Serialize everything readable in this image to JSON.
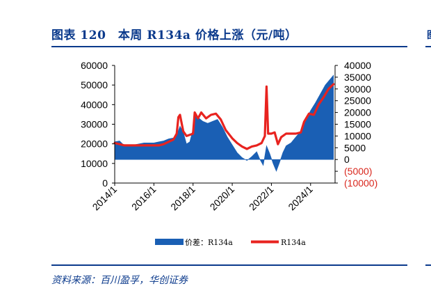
{
  "header": {
    "title": "图表 120　本周 R134a 价格上涨（元/吨）"
  },
  "footer": {
    "source": "资料来源：百川盈孚，华创证券"
  },
  "chart_data": {
    "type": "area",
    "title": "",
    "x_tick_labels": [
      "2014/1",
      "2016/1",
      "2018/1",
      "2020/1",
      "2022/1",
      "2024/1"
    ],
    "y_left": {
      "ticks": [
        "0",
        "10000",
        "20000",
        "30000",
        "40000",
        "50000",
        "60000"
      ],
      "ylim": [
        0,
        60000
      ]
    },
    "y_right": {
      "ticks": [
        "(10000)",
        "(5000)",
        "0",
        "5000",
        "10000",
        "15000",
        "20000",
        "25000",
        "30000",
        "35000",
        "40000"
      ],
      "ylim": [
        -10000,
        40000
      ]
    },
    "grid": false,
    "legend_position": "bottom",
    "series": [
      {
        "name": "价差：R134a",
        "type": "area",
        "axis": "left",
        "color": "#1a5fb4",
        "points": [
          [
            "2014-01",
            21000
          ],
          [
            "2014-04",
            21500
          ],
          [
            "2014-07",
            19000
          ],
          [
            "2014-10",
            18500
          ],
          [
            "2015-01",
            19500
          ],
          [
            "2015-04",
            20000
          ],
          [
            "2015-07",
            20500
          ],
          [
            "2015-10",
            20500
          ],
          [
            "2016-01",
            20500
          ],
          [
            "2016-04",
            21000
          ],
          [
            "2016-07",
            21500
          ],
          [
            "2016-10",
            22500
          ],
          [
            "2017-01",
            23000
          ],
          [
            "2017-03",
            24500
          ],
          [
            "2017-05",
            29000
          ],
          [
            "2017-07",
            26000
          ],
          [
            "2017-09",
            20000
          ],
          [
            "2017-11",
            21000
          ],
          [
            "2018-01",
            27500
          ],
          [
            "2018-02",
            35500
          ],
          [
            "2018-04",
            33500
          ],
          [
            "2018-07",
            31500
          ],
          [
            "2018-10",
            30500
          ],
          [
            "2019-01",
            31500
          ],
          [
            "2019-04",
            32500
          ],
          [
            "2019-07",
            28500
          ],
          [
            "2019-10",
            23500
          ],
          [
            "2020-01",
            19500
          ],
          [
            "2020-04",
            15500
          ],
          [
            "2020-07",
            13000
          ],
          [
            "2020-10",
            11500
          ],
          [
            "2021-01",
            13500
          ],
          [
            "2021-04",
            16000
          ],
          [
            "2021-06",
            12000
          ],
          [
            "2021-08",
            9000
          ],
          [
            "2021-10",
            19000
          ],
          [
            "2021-12",
            15000
          ],
          [
            "2022-02",
            10000
          ],
          [
            "2022-04",
            6000
          ],
          [
            "2022-06",
            10500
          ],
          [
            "2022-08",
            15500
          ],
          [
            "2022-10",
            19000
          ],
          [
            "2023-01",
            20500
          ],
          [
            "2023-04",
            23500
          ],
          [
            "2023-07",
            26500
          ],
          [
            "2023-10",
            32000
          ],
          [
            "2024-01",
            37000
          ],
          [
            "2024-04",
            41000
          ],
          [
            "2024-07",
            45500
          ],
          [
            "2024-10",
            50000
          ],
          [
            "2025-01",
            53000
          ],
          [
            "2025-03",
            55000
          ]
        ]
      },
      {
        "name": "R134a",
        "type": "line",
        "axis": "right",
        "color": "#e8231f",
        "points": [
          [
            "2014-01",
            7000
          ],
          [
            "2014-04",
            6500
          ],
          [
            "2014-07",
            6000
          ],
          [
            "2014-10",
            6000
          ],
          [
            "2015-01",
            6000
          ],
          [
            "2015-04",
            6000
          ],
          [
            "2015-07",
            6000
          ],
          [
            "2015-10",
            6000
          ],
          [
            "2016-01",
            6000
          ],
          [
            "2016-04",
            6000
          ],
          [
            "2016-07",
            6500
          ],
          [
            "2016-10",
            7500
          ],
          [
            "2017-01",
            8500
          ],
          [
            "2017-03",
            11000
          ],
          [
            "2017-04",
            18000
          ],
          [
            "2017-05",
            19000
          ],
          [
            "2017-07",
            12000
          ],
          [
            "2017-09",
            10000
          ],
          [
            "2017-11",
            10500
          ],
          [
            "2018-01",
            11000
          ],
          [
            "2018-02",
            20000
          ],
          [
            "2018-04",
            17500
          ],
          [
            "2018-06",
            20000
          ],
          [
            "2018-09",
            17500
          ],
          [
            "2018-12",
            19000
          ],
          [
            "2019-03",
            19500
          ],
          [
            "2019-06",
            17000
          ],
          [
            "2019-09",
            12500
          ],
          [
            "2020-01",
            9000
          ],
          [
            "2020-04",
            7000
          ],
          [
            "2020-07",
            5500
          ],
          [
            "2020-10",
            4500
          ],
          [
            "2021-01",
            5500
          ],
          [
            "2021-04",
            6000
          ],
          [
            "2021-07",
            7000
          ],
          [
            "2021-09",
            10000
          ],
          [
            "2021-10",
            31000
          ],
          [
            "2021-11",
            11000
          ],
          [
            "2022-01",
            11000
          ],
          [
            "2022-03",
            11500
          ],
          [
            "2022-05",
            6500
          ],
          [
            "2022-07",
            9500
          ],
          [
            "2022-10",
            11000
          ],
          [
            "2023-01",
            11000
          ],
          [
            "2023-04",
            11000
          ],
          [
            "2023-07",
            11500
          ],
          [
            "2023-09",
            16000
          ],
          [
            "2023-12",
            19500
          ],
          [
            "2024-03",
            19000
          ],
          [
            "2024-06",
            23500
          ],
          [
            "2024-09",
            26500
          ],
          [
            "2024-12",
            30000
          ],
          [
            "2025-03",
            32000
          ]
        ]
      }
    ]
  }
}
